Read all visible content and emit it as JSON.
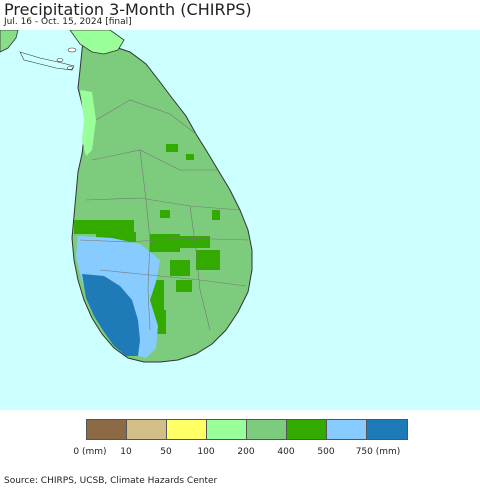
{
  "header": {
    "title": "Precipitation 3-Month (CHIRPS)",
    "subtitle": "Jul. 16 - Oct. 15, 2024 [final]"
  },
  "map": {
    "ocean_color": "#ccffff",
    "land_outside_color": "#88dd88",
    "region": "Sri Lanka",
    "dominant_class_north_east": "200-400 mm",
    "dominant_class_south_west": "750 mm and above"
  },
  "legend": {
    "classes": [
      {
        "color": "#8b6a45"
      },
      {
        "color": "#d2bf88"
      },
      {
        "color": "#ffff66"
      },
      {
        "color": "#99ff99"
      },
      {
        "color": "#7dcc7d"
      },
      {
        "color": "#33aa00"
      },
      {
        "color": "#88ccff"
      },
      {
        "color": "#1f7ab8"
      }
    ],
    "labels": [
      "0 (mm)",
      "10",
      "50",
      "100",
      "200",
      "400",
      "500",
      "750 (mm)"
    ]
  },
  "footer": {
    "source": "Source: CHIRPS, UCSB, Climate Hazards Center"
  }
}
